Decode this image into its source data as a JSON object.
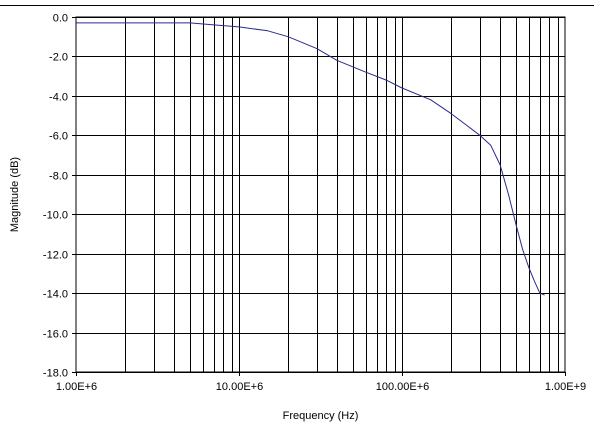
{
  "chart_data": {
    "type": "line",
    "title": "",
    "xlabel": "Frequency (Hz)",
    "ylabel": "Magnitude (dB)",
    "x_scale": "log",
    "xlim": [
      1000000,
      1000000000
    ],
    "ylim": [
      -18,
      0
    ],
    "grid": true,
    "legend": "none",
    "x_ticks": [
      1000000,
      10000000,
      100000000,
      1000000000
    ],
    "x_tick_labels": [
      "1.00E+6",
      "10.00E+6",
      "100.00E+6",
      "1.00E+9"
    ],
    "y_ticks": [
      0,
      -2,
      -4,
      -6,
      -8,
      -10,
      -12,
      -14,
      -16,
      -18
    ],
    "y_tick_labels": [
      "0.0",
      "-2.0",
      "-4.0",
      "-6.0",
      "-8.0",
      "-10.0",
      "-12.0",
      "-14.0",
      "-16.0",
      "-18.0"
    ],
    "series": [
      {
        "color": "#2b2b8c",
        "x": [
          1000000,
          2000000,
          3000000,
          5000000,
          7000000,
          10000000,
          15000000,
          20000000,
          30000000,
          40000000,
          60000000,
          80000000,
          100000000,
          150000000,
          200000000,
          250000000,
          300000000,
          350000000,
          400000000,
          450000000,
          500000000,
          550000000,
          600000000,
          650000000,
          700000000,
          750000000
        ],
        "y": [
          -0.3,
          -0.3,
          -0.3,
          -0.3,
          -0.4,
          -0.5,
          -0.7,
          -1.0,
          -1.6,
          -2.2,
          -2.8,
          -3.2,
          -3.6,
          -4.2,
          -4.9,
          -5.5,
          -6.0,
          -6.5,
          -7.5,
          -9.0,
          -10.5,
          -11.8,
          -12.7,
          -13.4,
          -14.0,
          -14.1
        ]
      }
    ]
  },
  "colors": {
    "line": "#2b2b8c",
    "grid": "#000000",
    "background": "#ffffff"
  }
}
